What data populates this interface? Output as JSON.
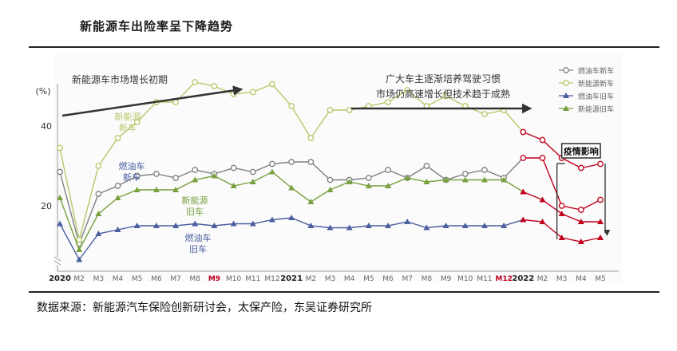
{
  "page": {
    "title": "新能源车出险率呈下降趋势",
    "source": "数据来源：新能源汽车保险创新研讨会，太保产险，东吴证券研究所"
  },
  "colors": {
    "fuel_new": "#7f7f7f",
    "ev_new": "#b5c96a",
    "fuel_used": "#4a5ea0",
    "ev_used": "#79a03e",
    "highlight_red": "#c0001c",
    "covid_box": "#2b2b2b"
  },
  "chart_data": {
    "type": "line",
    "title": "",
    "xlabel": "",
    "ylabel": "(%)",
    "ylim": [
      5,
      55
    ],
    "yticks": [
      20,
      40
    ],
    "grid": false,
    "legend": "top-right",
    "categories": [
      "2020",
      "M2",
      "M3",
      "M4",
      "M5",
      "M6",
      "M7",
      "M8",
      "M9",
      "M10",
      "M11",
      "M12",
      "2021",
      "M2",
      "M3",
      "M4",
      "M5",
      "M6",
      "M7",
      "M8",
      "M9",
      "M10",
      "M11",
      "M12",
      "2022",
      "M2",
      "M3",
      "M4",
      "M5"
    ],
    "highlighted_ticks": [
      "M9",
      "M12"
    ],
    "series": [
      {
        "name": "燃油车新车",
        "key": "fuel_new",
        "values": [
          28.5,
          10.5,
          23,
          25,
          27.5,
          28,
          27,
          29,
          28,
          29.5,
          28.5,
          30.5,
          31,
          31,
          26.5,
          26.5,
          27,
          29,
          27,
          30,
          26.5,
          28,
          29,
          27,
          32,
          32,
          20,
          19,
          21.5
        ]
      },
      {
        "name": "新能源新车",
        "key": "ev_new",
        "values": [
          34.5,
          11.5,
          30,
          37,
          41,
          46,
          46,
          51,
          50,
          48,
          48.5,
          50.5,
          45,
          37,
          44,
          44,
          45,
          46,
          49,
          45,
          47.5,
          45,
          43,
          44,
          38.5,
          36.5,
          32,
          29.5,
          30.5
        ]
      },
      {
        "name": "燃油车旧车",
        "key": "fuel_used",
        "values": [
          15.5,
          6.5,
          13,
          14,
          15,
          15,
          15,
          15.5,
          15,
          15.5,
          15.5,
          16.5,
          17,
          15,
          14.5,
          14.5,
          15,
          15,
          16,
          14.5,
          15,
          15,
          15,
          15,
          16.5,
          16,
          12,
          11,
          12
        ]
      },
      {
        "name": "新能源旧车",
        "key": "ev_used",
        "values": [
          22,
          9,
          18,
          22,
          24,
          24,
          24,
          26.5,
          27.5,
          25,
          26,
          28.5,
          24.5,
          21,
          24,
          26,
          25,
          25,
          27,
          26,
          26.5,
          26.5,
          26.5,
          26.5,
          23.5,
          21.5,
          18,
          16,
          16
        ]
      }
    ],
    "red_from_index": 24,
    "annotations": {
      "arrow_left": "新能源车市场增长初期",
      "arrow_right_line1": "广大车主逐渐培养驾驶习惯",
      "arrow_right_line2": "市场仍高速增长但技术趋于成熟",
      "covid_label": "疫情影响",
      "label_ev_new": [
        "新能源",
        "新车"
      ],
      "label_fuel_new": [
        "燃油车",
        "新车"
      ],
      "label_ev_used": [
        "新能源",
        "旧车"
      ],
      "label_fuel_used": [
        "燃油车",
        "旧车"
      ]
    }
  }
}
